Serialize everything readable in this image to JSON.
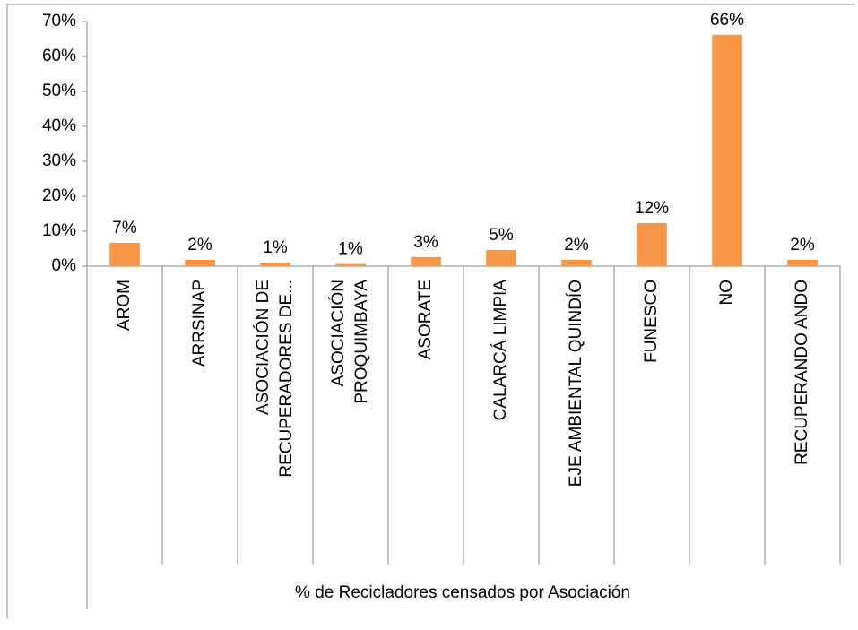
{
  "chart_data": {
    "type": "bar",
    "x_label": "% de Recicladores censados por Asociación",
    "categories": [
      [
        "AROM"
      ],
      [
        "ARRSINAP"
      ],
      [
        "ASOCIACIÓN DE",
        "RECUPERADORES DE..."
      ],
      [
        "ASOCIACIÓN",
        "PROQUIMBAYA"
      ],
      [
        "ASORATE"
      ],
      [
        "CALARCÁ LIMPIA"
      ],
      [
        "EJE AMBIENTAL QUINDÍO"
      ],
      [
        "FUNESCO"
      ],
      [
        "NO"
      ],
      [
        "RECUPERANDO ANDO"
      ]
    ],
    "values": [
      6.7,
      1.8,
      1.0,
      0.6,
      2.6,
      4.6,
      1.8,
      12.3,
      66.2,
      1.8
    ],
    "value_labels": [
      "7%",
      "2%",
      "1%",
      "1%",
      "3%",
      "5%",
      "2%",
      "12%",
      "66%",
      "2%"
    ],
    "color": "#f79646",
    "ylim": [
      0,
      70
    ],
    "yticks": [
      {
        "value": 0,
        "label": "0%"
      },
      {
        "value": 10,
        "label": "10%"
      },
      {
        "value": 20,
        "label": "20%"
      },
      {
        "value": 30,
        "label": "30%"
      },
      {
        "value": 40,
        "label": "40%"
      },
      {
        "value": 50,
        "label": "50%"
      },
      {
        "value": 60,
        "label": "60%"
      },
      {
        "value": 70,
        "label": "70%"
      }
    ]
  }
}
